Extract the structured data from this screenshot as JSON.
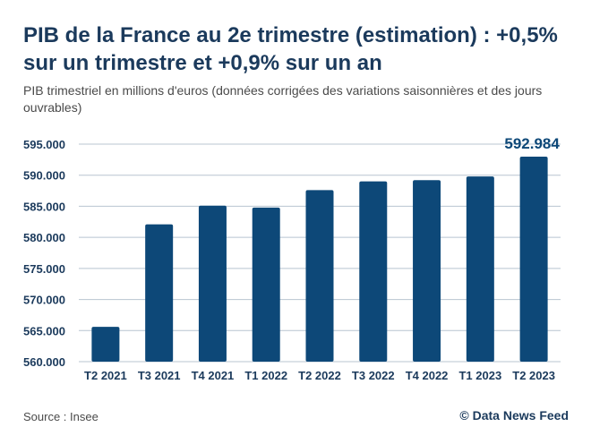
{
  "header": {
    "title": "PIB de la France au 2e trimestre (estimation) : +0,5% sur un trimestre et +0,9% sur un an",
    "subtitle": "PIB trimestriel en millions d'euros (données corrigées des variations saisonnières et des jours ouvrables)"
  },
  "footer": {
    "source": "Source : Insee",
    "credit": "© Data News Feed"
  },
  "colors": {
    "bar": "#0d4878",
    "grid": "#b8c4d0",
    "axis_text": "#1b3a5c"
  },
  "chart_data": {
    "type": "bar",
    "title": "PIB de la France au 2e trimestre (estimation) : +0,5% sur un trimestre et +0,9% sur un an",
    "ylabel": "",
    "xlabel": "",
    "categories": [
      "T2 2021",
      "T3 2021",
      "T4 2021",
      "T1 2022",
      "T2 2022",
      "T3 2022",
      "T4 2022",
      "T1 2023",
      "T2 2023"
    ],
    "values": [
      565600,
      582100,
      585100,
      584800,
      587600,
      589000,
      589200,
      589800,
      592984
    ],
    "ylim": [
      560000,
      595000
    ],
    "yticks": [
      560000,
      565000,
      570000,
      575000,
      580000,
      585000,
      590000,
      595000
    ],
    "ytick_labels": [
      "560.000",
      "565.000",
      "570.000",
      "575.000",
      "580.000",
      "585.000",
      "590.000",
      "595.000"
    ],
    "data_labels": [
      {
        "index": 8,
        "text": "592.984"
      }
    ],
    "grid": true
  }
}
